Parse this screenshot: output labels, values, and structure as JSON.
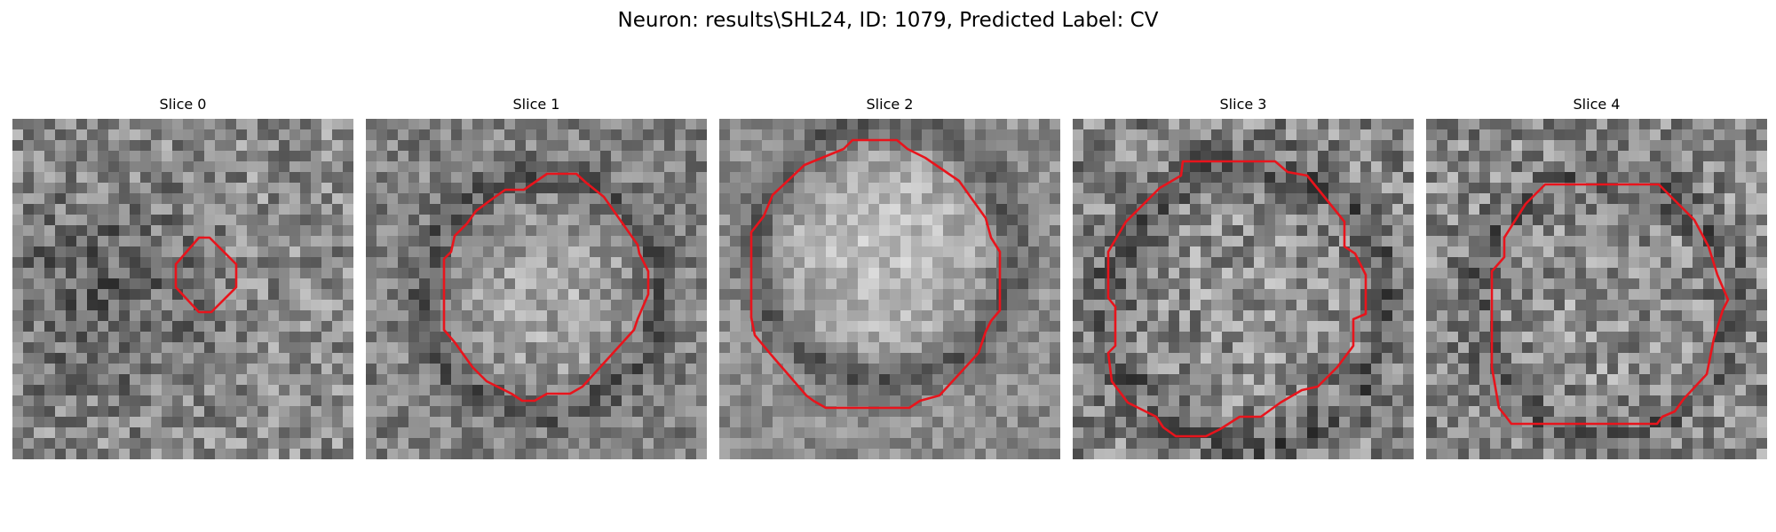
{
  "figure": {
    "title": "Neuron: results\\SHL24, ID: 1079, Predicted Label: CV",
    "contour_color": "#e8141c",
    "colormap": "gray"
  },
  "panels": [
    {
      "title": "Slice 0"
    },
    {
      "title": "Slice 1"
    },
    {
      "title": "Slice 2"
    },
    {
      "title": "Slice 3"
    },
    {
      "title": "Slice 4"
    }
  ]
}
